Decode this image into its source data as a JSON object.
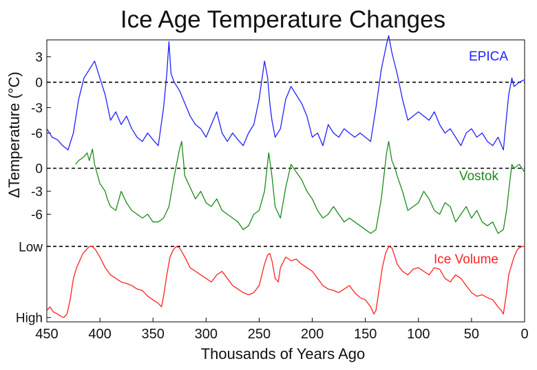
{
  "chart_data": {
    "type": "line",
    "title": "Ice Age Temperature Changes",
    "xlabel": "Thousands of Years Ago",
    "ylabel": "ΔTemperature (°C)",
    "xlim": [
      450,
      0
    ],
    "x_ticks": [
      "450",
      "400",
      "350",
      "300",
      "250",
      "200",
      "150",
      "100",
      "50",
      "0"
    ],
    "grid": false,
    "legend": "inline labels right",
    "panels": [
      {
        "name": "EPICA",
        "color": "#1f1fff",
        "unit": "°C",
        "ylim": [
          -8,
          5
        ],
        "y_ticks": [
          3,
          0,
          -3,
          -6
        ],
        "y_tick_labels": [
          "3",
          "0",
          "-3",
          "-6"
        ],
        "reference": 0,
        "x": [
          450,
          445,
          440,
          435,
          430,
          425,
          420,
          415,
          410,
          405,
          400,
          395,
          390,
          385,
          380,
          375,
          370,
          365,
          360,
          355,
          350,
          345,
          340,
          337,
          335,
          333,
          330,
          325,
          320,
          315,
          310,
          305,
          300,
          295,
          290,
          285,
          280,
          275,
          270,
          265,
          260,
          255,
          250,
          245,
          242,
          240,
          238,
          235,
          230,
          225,
          220,
          215,
          210,
          205,
          200,
          195,
          190,
          185,
          180,
          175,
          170,
          165,
          160,
          155,
          150,
          145,
          140,
          135,
          130,
          128,
          125,
          122,
          120,
          115,
          110,
          105,
          100,
          95,
          90,
          85,
          80,
          75,
          70,
          65,
          60,
          55,
          50,
          45,
          40,
          35,
          30,
          25,
          20,
          17,
          15,
          12,
          10,
          5,
          0
        ],
        "values": [
          -5.5,
          -6.5,
          -6.8,
          -7.5,
          -8.0,
          -6.0,
          -2.0,
          0.5,
          1.5,
          2.5,
          0.5,
          -1.5,
          -4.5,
          -3.5,
          -5.0,
          -4.0,
          -5.5,
          -6.5,
          -7.0,
          -6.0,
          -6.8,
          -7.5,
          -3.0,
          1.0,
          4.8,
          1.0,
          0.0,
          -1.0,
          -2.5,
          -4.0,
          -5.0,
          -5.5,
          -6.5,
          -5.0,
          -3.5,
          -6.0,
          -7.0,
          -6.0,
          -6.8,
          -7.5,
          -6.0,
          -5.0,
          -2.0,
          2.5,
          0.5,
          -2.5,
          -4.5,
          -6.5,
          -5.5,
          -2.0,
          -0.5,
          -1.5,
          -2.5,
          -4.0,
          -6.5,
          -6.0,
          -7.5,
          -5.0,
          -6.0,
          -6.5,
          -5.5,
          -6.0,
          -6.5,
          -6.0,
          -6.5,
          -7.0,
          -3.0,
          1.5,
          4.5,
          5.5,
          3.5,
          2.0,
          1.0,
          -2.0,
          -4.5,
          -4.0,
          -3.5,
          -4.0,
          -4.5,
          -3.5,
          -5.0,
          -6.0,
          -5.5,
          -6.5,
          -7.5,
          -6.0,
          -5.5,
          -6.5,
          -6.0,
          -7.0,
          -7.5,
          -6.5,
          -8.0,
          -4.0,
          -1.5,
          0.5,
          -0.5,
          0.0,
          0.3
        ]
      },
      {
        "name": "Vostok",
        "color": "#1a8a1a",
        "unit": "°C",
        "ylim": [
          -9,
          4
        ],
        "y_ticks": [
          0,
          -3,
          -6
        ],
        "y_tick_labels": [
          "0",
          "-3",
          "-6"
        ],
        "reference": 0,
        "x": [
          423,
          420,
          415,
          412,
          410,
          407,
          405,
          400,
          395,
          393,
          390,
          385,
          380,
          375,
          370,
          365,
          360,
          355,
          350,
          345,
          340,
          335,
          330,
          325,
          323,
          320,
          315,
          310,
          305,
          300,
          295,
          290,
          285,
          280,
          275,
          270,
          265,
          260,
          255,
          250,
          245,
          241,
          238,
          235,
          230,
          225,
          220,
          215,
          210,
          205,
          200,
          195,
          190,
          185,
          180,
          175,
          170,
          165,
          160,
          155,
          150,
          145,
          140,
          135,
          130,
          128,
          125,
          122,
          120,
          115,
          110,
          105,
          100,
          95,
          90,
          85,
          80,
          75,
          70,
          65,
          60,
          55,
          50,
          45,
          40,
          35,
          30,
          25,
          20,
          17,
          15,
          12,
          10,
          5,
          0
        ],
        "values": [
          0.5,
          1.0,
          1.5,
          2.0,
          1.0,
          2.5,
          0.5,
          -2.0,
          -3.0,
          -4.0,
          -5.0,
          -5.5,
          -3.0,
          -4.5,
          -5.5,
          -6.0,
          -6.5,
          -6.0,
          -7.0,
          -7.0,
          -6.5,
          -5.0,
          -1.0,
          2.5,
          3.5,
          -1.0,
          -2.5,
          -4.0,
          -3.0,
          -4.5,
          -5.0,
          -4.0,
          -5.5,
          -6.0,
          -6.5,
          -7.0,
          -8.0,
          -7.5,
          -6.0,
          -5.5,
          -3.0,
          2.0,
          -1.0,
          -5.0,
          -6.5,
          -2.5,
          0.5,
          -0.5,
          -1.5,
          -3.0,
          -4.0,
          -5.5,
          -6.5,
          -6.0,
          -5.0,
          -6.0,
          -7.0,
          -6.5,
          -7.0,
          -7.5,
          -8.0,
          -8.5,
          -8.0,
          -4.0,
          2.0,
          3.5,
          1.0,
          0.0,
          -1.0,
          -3.0,
          -5.5,
          -5.0,
          -4.5,
          -3.0,
          -4.0,
          -5.5,
          -6.0,
          -4.5,
          -5.0,
          -7.0,
          -6.0,
          -5.0,
          -6.5,
          -5.5,
          -7.0,
          -7.5,
          -7.0,
          -8.5,
          -8.0,
          -5.5,
          -3.0,
          0.5,
          0.0,
          0.5,
          -0.5
        ]
      },
      {
        "name": "Ice Volume",
        "color": "#ff1f1f",
        "ylim": [
          -0.08,
          1.08
        ],
        "y_ticks": [
          1,
          0
        ],
        "y_tick_labels": [
          "Low",
          "High"
        ],
        "reference": 1,
        "x": [
          450,
          447,
          444,
          440,
          437,
          434,
          431,
          428,
          425,
          422,
          419,
          416,
          413,
          410,
          407,
          404,
          400,
          395,
          390,
          385,
          380,
          375,
          370,
          365,
          360,
          355,
          350,
          345,
          342,
          340,
          337,
          334,
          331,
          328,
          325,
          320,
          315,
          310,
          305,
          300,
          295,
          290,
          285,
          280,
          275,
          270,
          265,
          260,
          255,
          250,
          245,
          242,
          240,
          238,
          235,
          232,
          230,
          225,
          220,
          215,
          210,
          205,
          200,
          195,
          190,
          185,
          180,
          175,
          170,
          165,
          160,
          155,
          150,
          145,
          142,
          140,
          137,
          134,
          131,
          128,
          125,
          122,
          120,
          115,
          110,
          105,
          100,
          95,
          90,
          85,
          80,
          75,
          70,
          65,
          60,
          55,
          50,
          45,
          40,
          35,
          30,
          25,
          22,
          20,
          17,
          15,
          12,
          10,
          7,
          5,
          2,
          0
        ],
        "values": [
          0.1,
          0.15,
          0.08,
          0.05,
          0.02,
          0.0,
          0.05,
          0.25,
          0.55,
          0.7,
          0.8,
          0.9,
          0.95,
          1.0,
          1.0,
          0.95,
          0.85,
          0.7,
          0.6,
          0.55,
          0.5,
          0.48,
          0.45,
          0.4,
          0.38,
          0.3,
          0.25,
          0.2,
          0.15,
          0.3,
          0.6,
          0.85,
          0.95,
          1.0,
          0.98,
          0.85,
          0.7,
          0.65,
          0.6,
          0.55,
          0.5,
          0.6,
          0.65,
          0.55,
          0.45,
          0.4,
          0.35,
          0.32,
          0.35,
          0.45,
          0.75,
          0.88,
          0.9,
          0.8,
          0.55,
          0.5,
          0.7,
          0.85,
          0.8,
          0.82,
          0.75,
          0.7,
          0.65,
          0.55,
          0.45,
          0.4,
          0.38,
          0.35,
          0.4,
          0.45,
          0.35,
          0.28,
          0.25,
          0.15,
          0.05,
          0.1,
          0.4,
          0.7,
          0.9,
          1.0,
          0.98,
          0.85,
          0.75,
          0.65,
          0.6,
          0.68,
          0.7,
          0.65,
          0.6,
          0.7,
          0.68,
          0.55,
          0.5,
          0.6,
          0.55,
          0.45,
          0.35,
          0.3,
          0.32,
          0.28,
          0.25,
          0.15,
          0.1,
          0.05,
          0.35,
          0.6,
          0.75,
          0.85,
          0.95,
          0.98,
          1.0,
          1.0
        ]
      }
    ]
  }
}
